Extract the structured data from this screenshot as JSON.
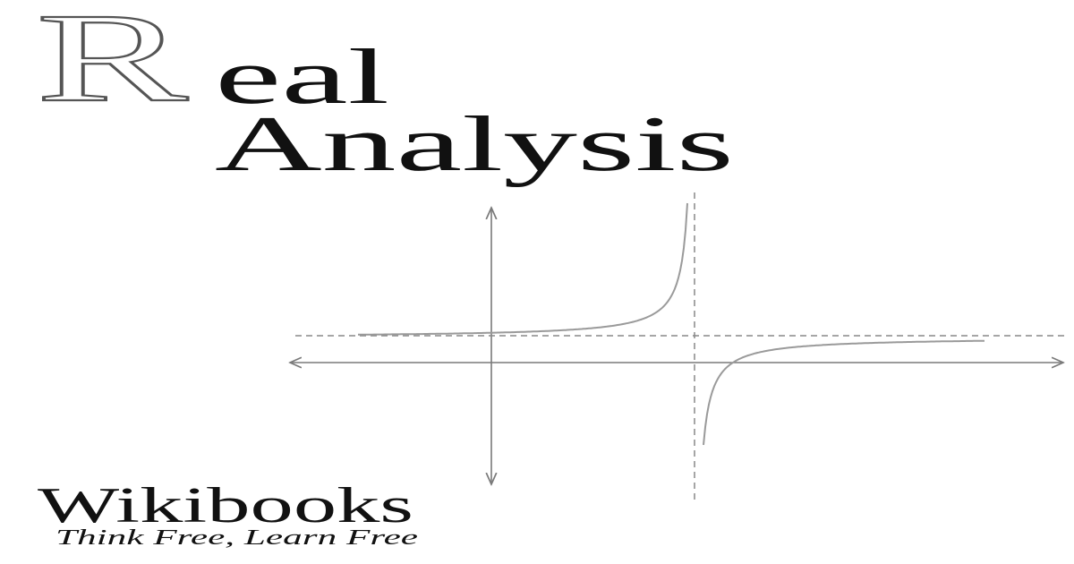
{
  "title": {
    "initial": "R",
    "rest_of_first_word": "eal",
    "second_word": "Analysis"
  },
  "brand": {
    "name": "Wikibooks",
    "tagline": "Think Free, Learn Free"
  },
  "colors": {
    "background": "#ffffff",
    "text": "#111111",
    "graph_lines": "#8a8a8a"
  }
}
